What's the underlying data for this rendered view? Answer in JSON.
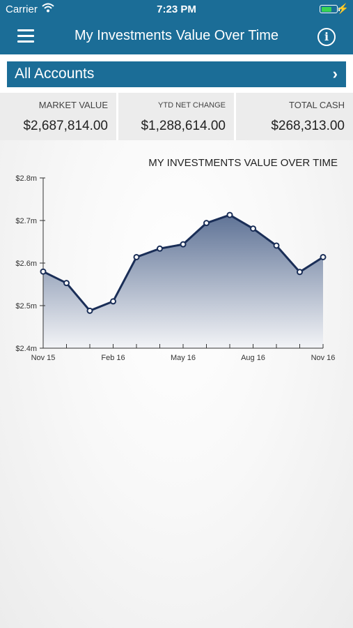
{
  "status_bar": {
    "carrier": "Carrier",
    "time": "7:23 PM",
    "bolt": "⚡"
  },
  "nav": {
    "title": "My Investments Value Over Time",
    "info_glyph": "i"
  },
  "accounts": {
    "label": "All Accounts",
    "chevron": "›"
  },
  "summary": [
    {
      "label": "MARKET VALUE",
      "value": "$2,687,814.00"
    },
    {
      "label": "YTD NET CHANGE",
      "value": "$1,288,614.00"
    },
    {
      "label": "TOTAL CASH",
      "value": "$268,313.00"
    }
  ],
  "colors": {
    "brand": "#1b6d97",
    "line": "#1a2e57",
    "battery": "#39d353"
  },
  "chart_data": {
    "type": "area",
    "title": "MY INVESTMENTS VALUE OVER TIME",
    "xlabel": "",
    "ylabel": "",
    "x_tick_labels": [
      "Nov 15",
      "Feb 16",
      "May 16",
      "Aug 16",
      "Nov 16"
    ],
    "y_tick_labels": [
      "$2.4m",
      "$2.5m",
      "$2.6m",
      "$2.7m",
      "$2.8m"
    ],
    "ylim": [
      2.4,
      2.8
    ],
    "x": [
      "Nov 15",
      "Dec 15",
      "Jan 16",
      "Feb 16",
      "Mar 16",
      "Apr 16",
      "May 16",
      "Jun 16",
      "Jul 16",
      "Aug 16",
      "Sep 16",
      "Oct 16",
      "Nov 16"
    ],
    "values": [
      2.58,
      2.553,
      2.488,
      2.51,
      2.614,
      2.634,
      2.644,
      2.694,
      2.713,
      2.681,
      2.641,
      2.579,
      2.614
    ],
    "grid": false,
    "legend": "none"
  }
}
